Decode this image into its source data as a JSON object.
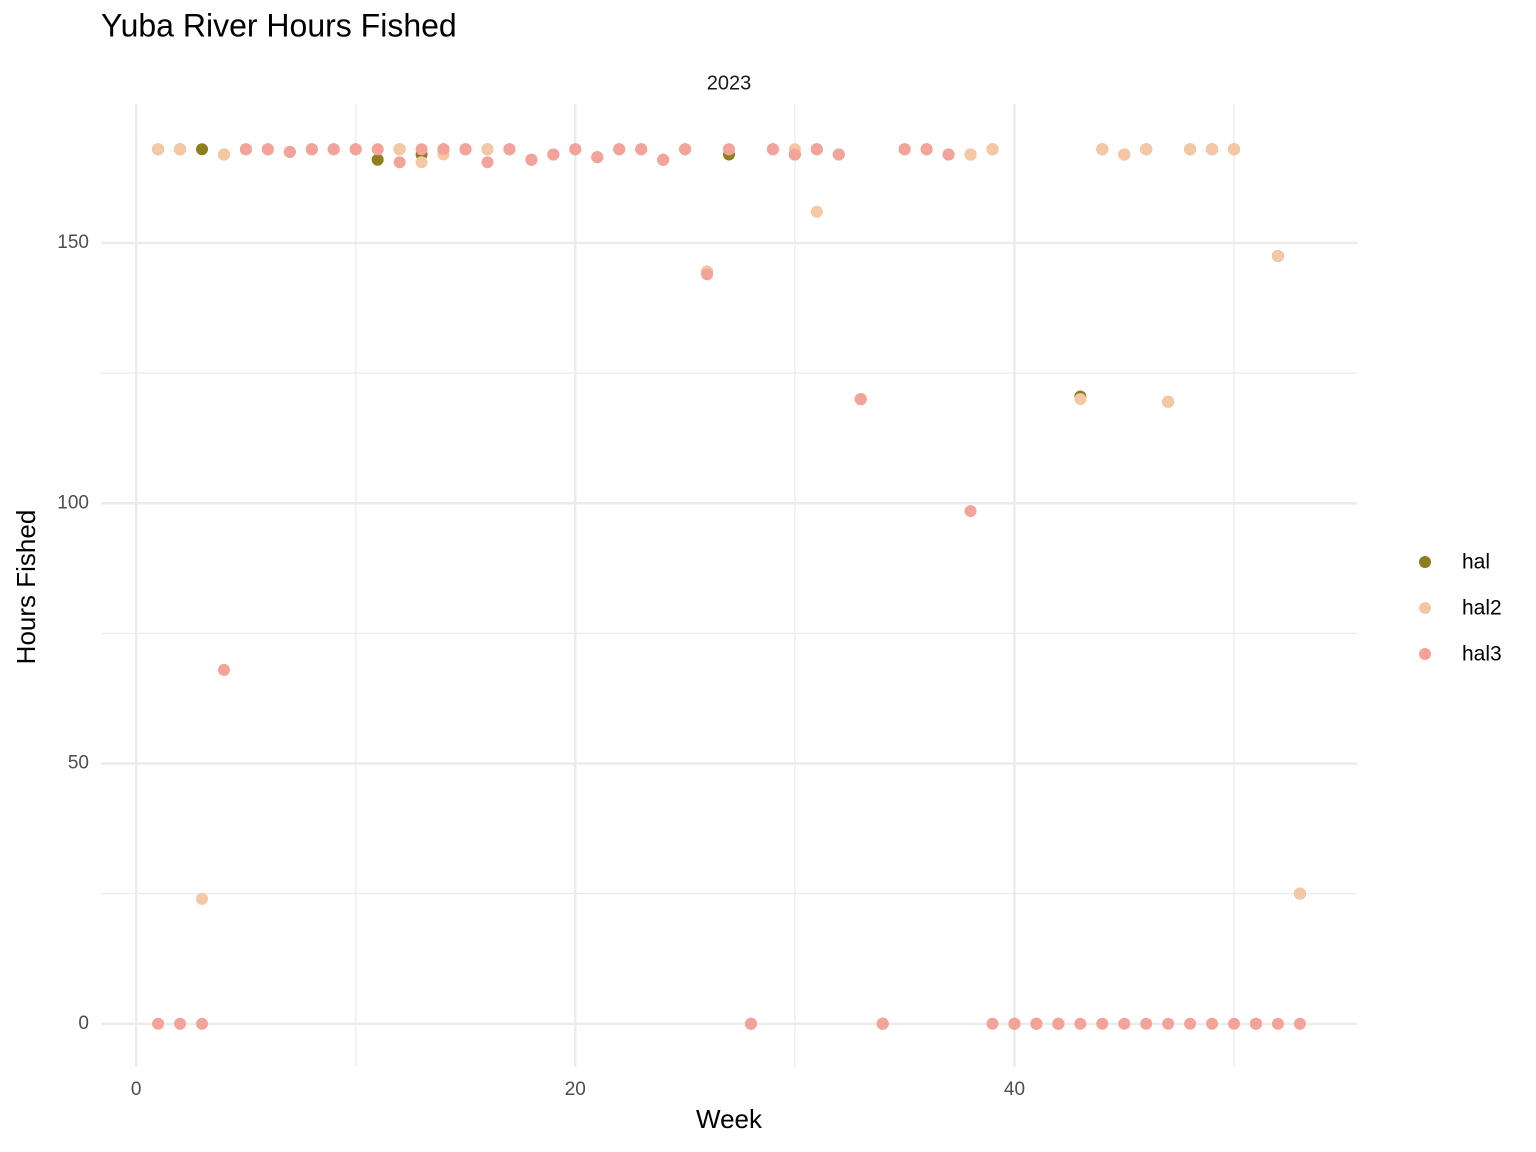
{
  "chart_data": {
    "type": "scatter",
    "title": "Yuba River Hours Fished",
    "subtitle": "2023",
    "x_label": "Week",
    "y_label": "Hours Fished",
    "x": [
      1,
      2,
      3,
      4,
      5,
      6,
      7,
      8,
      9,
      10,
      11,
      12,
      13,
      14,
      15,
      16,
      17,
      18,
      19,
      20,
      21,
      22,
      23,
      24,
      25,
      26,
      27,
      28,
      29,
      30,
      31,
      32,
      33,
      34,
      35,
      36,
      37,
      38,
      39,
      40,
      41,
      42,
      43,
      44,
      45,
      46,
      47,
      48,
      49,
      50,
      51,
      52,
      53
    ],
    "series": [
      {
        "name": "hal",
        "color": "#8e7f1e",
        "values": [
          168,
          168,
          168,
          167,
          168,
          168,
          167.5,
          168,
          168,
          168,
          166,
          168,
          167,
          168,
          168,
          168,
          168,
          166,
          167,
          168,
          166.5,
          168,
          168,
          166,
          168,
          144.5,
          167,
          0,
          168,
          167,
          168,
          167,
          120,
          0,
          168,
          168,
          167,
          167,
          168,
          0,
          0,
          0,
          120.5,
          168,
          167,
          168,
          119.5,
          168,
          168,
          168,
          0,
          147.5,
          25
        ]
      },
      {
        "name": "hal2",
        "color": "#f4c8a4",
        "values": [
          168,
          168,
          24,
          167,
          168,
          168,
          167.5,
          168,
          168,
          168,
          168,
          168,
          165.5,
          167,
          168,
          168,
          168,
          166,
          167,
          168,
          166.5,
          168,
          168,
          166,
          168,
          144.5,
          168,
          0,
          168,
          168,
          156,
          167,
          120,
          0,
          168,
          168,
          167,
          167,
          168,
          0,
          0,
          0,
          120,
          168,
          167,
          168,
          119.5,
          168,
          168,
          168,
          0,
          147.5,
          25
        ]
      },
      {
        "name": "hal3",
        "color": "#f4a39a",
        "values": [
          0,
          0,
          0,
          68,
          168,
          168,
          167.5,
          168,
          168,
          168,
          168,
          165.5,
          168,
          168,
          168,
          165.5,
          168,
          166,
          167,
          168,
          166.5,
          168,
          168,
          166,
          168,
          144,
          168,
          0,
          168,
          167,
          168,
          167,
          120,
          0,
          168,
          168,
          167,
          98.5,
          0,
          0,
          0,
          0,
          0,
          0,
          0,
          0,
          0,
          0,
          0,
          0,
          0,
          0,
          0
        ]
      }
    ],
    "xlim": [
      -1.6,
      55.6
    ],
    "ylim": [
      -8.3,
      176.7
    ],
    "xticks": [
      0,
      20,
      40
    ],
    "yticks": [
      0,
      50,
      100,
      150
    ],
    "x_minor_grid": [
      10,
      30,
      50
    ],
    "y_minor_grid": [
      25,
      75,
      125
    ],
    "grid": true,
    "legend": "right"
  }
}
